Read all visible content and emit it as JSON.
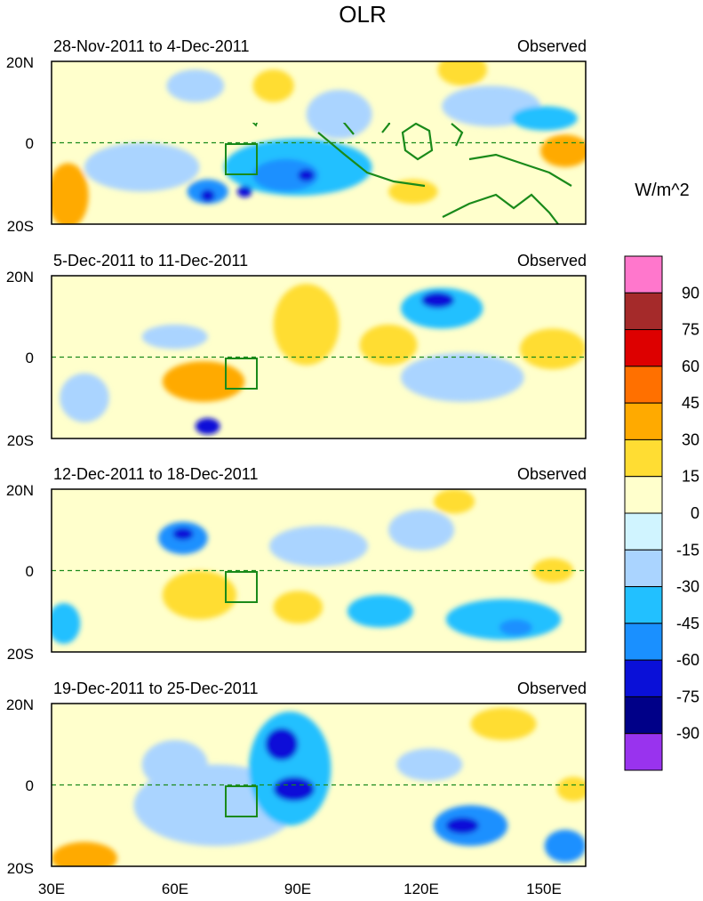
{
  "chart_data": {
    "type": "heatmap",
    "title": "OLR",
    "units": "W/m^2",
    "x_range": [
      30,
      160
    ],
    "y_range": [
      -20,
      20
    ],
    "x_ticks": [
      "30E",
      "60E",
      "90E",
      "120E",
      "150E"
    ],
    "y_ticks": [
      "20N",
      "0",
      "20S"
    ],
    "colorbar": {
      "labels": [
        "90",
        "75",
        "60",
        "45",
        "30",
        "15",
        "0",
        "-15",
        "-30",
        "-45",
        "-60",
        "-75",
        "-90"
      ],
      "colors": [
        "#ff77cc",
        "#a52a2a",
        "#dd0000",
        "#ff7000",
        "#ffaa00",
        "#ffdd33",
        "#ffffcc",
        "#d0f4ff",
        "#aad4ff",
        "#22c0ff",
        "#1a90ff",
        "#0a10d8",
        "#000088",
        "#9933ee"
      ]
    },
    "panels": [
      {
        "period": "28-Nov-2011 to 4-Dec-2011",
        "label": "Observed",
        "blobs": [
          {
            "lon": 52,
            "lat": -6,
            "rx": 14,
            "ry": 6,
            "v": -20
          },
          {
            "lon": 90,
            "lat": -6,
            "rx": 18,
            "ry": 7,
            "v": -35
          },
          {
            "lon": 87,
            "lat": -8,
            "rx": 8,
            "ry": 4,
            "v": -50
          },
          {
            "lon": 92,
            "lat": -8,
            "rx": 2,
            "ry": 1.5,
            "v": -62
          },
          {
            "lon": 68,
            "lat": -12,
            "rx": 5,
            "ry": 3,
            "v": -55
          },
          {
            "lon": 68,
            "lat": -13,
            "rx": 1.7,
            "ry": 1.5,
            "v": -70
          },
          {
            "lon": 77,
            "lat": -12,
            "rx": 1.8,
            "ry": 1.4,
            "v": -68
          },
          {
            "lon": 100,
            "lat": 7,
            "rx": 8,
            "ry": 6,
            "v": -20
          },
          {
            "lon": 65,
            "lat": 14,
            "rx": 7,
            "ry": 4,
            "v": -22
          },
          {
            "lon": 137,
            "lat": 9,
            "rx": 12,
            "ry": 5,
            "v": -20
          },
          {
            "lon": 150,
            "lat": 6,
            "rx": 8,
            "ry": 3,
            "v": -35
          },
          {
            "lon": 34,
            "lat": -13,
            "rx": 5,
            "ry": 8,
            "v": 35
          },
          {
            "lon": 118,
            "lat": -12,
            "rx": 6,
            "ry": 3,
            "v": 25
          },
          {
            "lon": 155,
            "lat": -2,
            "rx": 6,
            "ry": 4,
            "v": 40
          },
          {
            "lon": 84,
            "lat": 14,
            "rx": 5,
            "ry": 4,
            "v": 20
          },
          {
            "lon": 130,
            "lat": 18,
            "rx": 6,
            "ry": 4,
            "v": 18
          }
        ]
      },
      {
        "period": "5-Dec-2011 to 11-Dec-2011",
        "label": "Observed",
        "blobs": [
          {
            "lon": 67,
            "lat": -6,
            "rx": 10,
            "ry": 5,
            "v": 35
          },
          {
            "lon": 92,
            "lat": 8,
            "rx": 8,
            "ry": 10,
            "v": 25
          },
          {
            "lon": 125,
            "lat": 12,
            "rx": 10,
            "ry": 5,
            "v": -40
          },
          {
            "lon": 124,
            "lat": 14,
            "rx": 4,
            "ry": 2,
            "v": -70
          },
          {
            "lon": 130,
            "lat": -5,
            "rx": 15,
            "ry": 6,
            "v": -25
          },
          {
            "lon": 68,
            "lat": -17,
            "rx": 3,
            "ry": 2,
            "v": -65
          },
          {
            "lon": 60,
            "lat": 5,
            "rx": 8,
            "ry": 3,
            "v": -20
          },
          {
            "lon": 112,
            "lat": 3,
            "rx": 7,
            "ry": 5,
            "v": 25
          },
          {
            "lon": 152,
            "lat": 2,
            "rx": 8,
            "ry": 5,
            "v": 20
          },
          {
            "lon": 38,
            "lat": -10,
            "rx": 6,
            "ry": 6,
            "v": -25
          }
        ]
      },
      {
        "period": "12-Dec-2011 to 18-Dec-2011",
        "label": "Observed",
        "blobs": [
          {
            "lon": 62,
            "lat": 8,
            "rx": 6,
            "ry": 4,
            "v": -45
          },
          {
            "lon": 62,
            "lat": 9,
            "rx": 2.5,
            "ry": 1.5,
            "v": -70
          },
          {
            "lon": 66,
            "lat": -6,
            "rx": 9,
            "ry": 6,
            "v": 25
          },
          {
            "lon": 95,
            "lat": 6,
            "rx": 12,
            "ry": 5,
            "v": -22
          },
          {
            "lon": 140,
            "lat": -12,
            "rx": 14,
            "ry": 5,
            "v": -35
          },
          {
            "lon": 143,
            "lat": -14,
            "rx": 4,
            "ry": 2,
            "v": -55
          },
          {
            "lon": 120,
            "lat": 10,
            "rx": 8,
            "ry": 5,
            "v": -20
          },
          {
            "lon": 110,
            "lat": -10,
            "rx": 8,
            "ry": 4,
            "v": -30
          },
          {
            "lon": 33,
            "lat": -13,
            "rx": 4,
            "ry": 5,
            "v": -35
          },
          {
            "lon": 90,
            "lat": -9,
            "rx": 6,
            "ry": 4,
            "v": 20
          },
          {
            "lon": 152,
            "lat": 0,
            "rx": 5,
            "ry": 3,
            "v": 20
          },
          {
            "lon": 128,
            "lat": 17,
            "rx": 5,
            "ry": 3,
            "v": 18
          }
        ]
      },
      {
        "period": "19-Dec-2011 to 25-Dec-2011",
        "label": "Observed",
        "blobs": [
          {
            "lon": 88,
            "lat": 4,
            "rx": 10,
            "ry": 14,
            "v": -40
          },
          {
            "lon": 86,
            "lat": 10,
            "rx": 4,
            "ry": 4,
            "v": -65
          },
          {
            "lon": 89,
            "lat": -1,
            "rx": 5,
            "ry": 3,
            "v": -68
          },
          {
            "lon": 132,
            "lat": -10,
            "rx": 9,
            "ry": 5,
            "v": -45
          },
          {
            "lon": 130,
            "lat": -10,
            "rx": 4,
            "ry": 2,
            "v": -72
          },
          {
            "lon": 155,
            "lat": -15,
            "rx": 5,
            "ry": 4,
            "v": -50
          },
          {
            "lon": 38,
            "lat": -18,
            "rx": 8,
            "ry": 4,
            "v": 40
          },
          {
            "lon": 70,
            "lat": -5,
            "rx": 20,
            "ry": 10,
            "v": -15
          },
          {
            "lon": 140,
            "lat": 15,
            "rx": 8,
            "ry": 4,
            "v": 22
          },
          {
            "lon": 122,
            "lat": 5,
            "rx": 8,
            "ry": 4,
            "v": -25
          },
          {
            "lon": 60,
            "lat": 5,
            "rx": 8,
            "ry": 6,
            "v": -20
          },
          {
            "lon": 157,
            "lat": -1,
            "rx": 4,
            "ry": 3,
            "v": 30
          }
        ]
      }
    ]
  }
}
